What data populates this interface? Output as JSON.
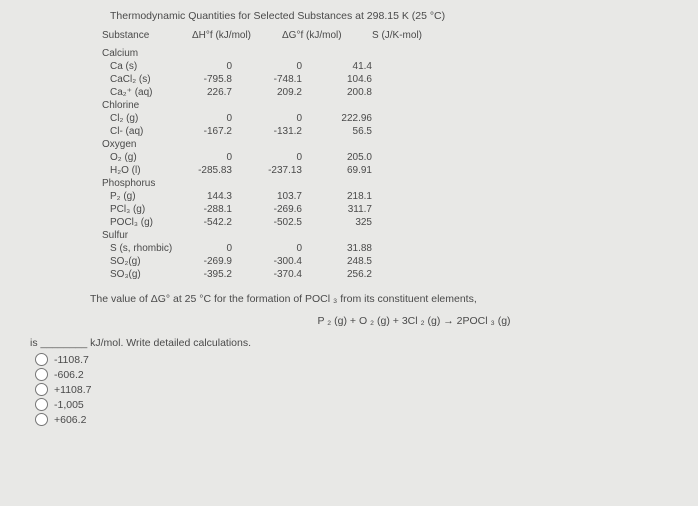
{
  "title": "Thermodynamic Quantities for Selected Substances at 298.15 K (25 °C)",
  "columns": {
    "c0": "Substance",
    "c1": "ΔH°f (kJ/mol)",
    "c2": "ΔG°f (kJ/mol)",
    "c3": "S (J/K-mol)"
  },
  "groups": [
    {
      "name": "Calcium",
      "rows": [
        {
          "sub": "Ca (s)",
          "dh": "0",
          "dg": "0",
          "s": "41.4"
        },
        {
          "sub": "CaCl₂ (s)",
          "dh": "-795.8",
          "dg": "-748.1",
          "s": "104.6"
        },
        {
          "sub": "Ca₂⁺ (aq)",
          "dh": "226.7",
          "dg": "209.2",
          "s": "200.8"
        }
      ]
    },
    {
      "name": "Chlorine",
      "rows": [
        {
          "sub": "Cl₂ (g)",
          "dh": "0",
          "dg": "0",
          "s": "222.96"
        },
        {
          "sub": "Cl- (aq)",
          "dh": "-167.2",
          "dg": "-131.2",
          "s": "56.5"
        }
      ]
    },
    {
      "name": "Oxygen",
      "rows": [
        {
          "sub": "O₂ (g)",
          "dh": "0",
          "dg": "0",
          "s": "205.0"
        },
        {
          "sub": "H₂O (l)",
          "dh": "-285.83",
          "dg": "-237.13",
          "s": "69.91"
        }
      ]
    },
    {
      "name": "Phosphorus",
      "rows": [
        {
          "sub": "P₂ (g)",
          "dh": "144.3",
          "dg": "103.7",
          "s": "218.1"
        },
        {
          "sub": "PCl₃ (g)",
          "dh": "-288.1",
          "dg": "-269.6",
          "s": "311.7"
        },
        {
          "sub": "POCl₃ (g)",
          "dh": "-542.2",
          "dg": "-502.5",
          "s": "325"
        }
      ]
    },
    {
      "name": "Sulfur",
      "rows": [
        {
          "sub": "S (s, rhombic)",
          "dh": "0",
          "dg": "0",
          "s": "31.88"
        },
        {
          "sub": "SO₂(g)",
          "dh": "-269.9",
          "dg": "-300.4",
          "s": "248.5"
        },
        {
          "sub": "SO₃(g)",
          "dh": "-395.2",
          "dg": "-370.4",
          "s": "256.2"
        }
      ]
    }
  ],
  "question": "The value of ΔG° at 25 °C for the formation of POCl ₃ from its constituent elements,",
  "equation": "P ₂ (g) + O ₂ (g) + 3Cl ₂ (g) → 2POCl ₃ (g)",
  "prompt_pre": "is ",
  "prompt_post": " kJ/mol. Write detailed calculations.",
  "options": [
    "-1108.7",
    "-606.2",
    "+1108.7",
    "-1,005",
    "+606.2"
  ]
}
